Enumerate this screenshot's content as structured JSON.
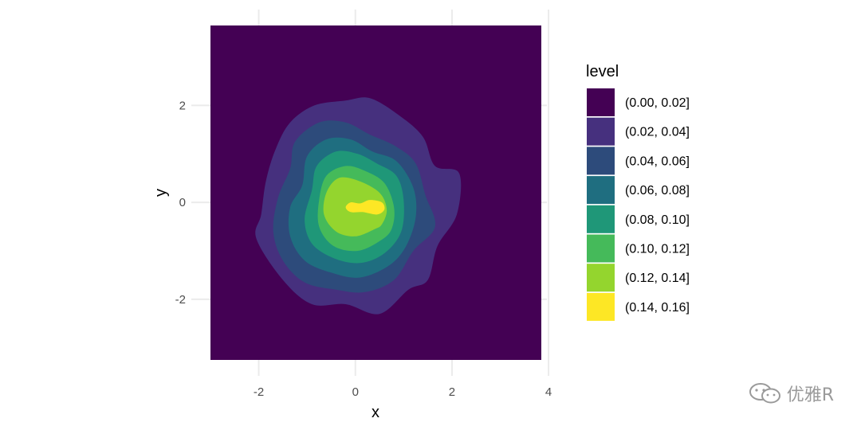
{
  "chart_data": {
    "type": "heatmap",
    "subtype": "filled-density-contour",
    "title": "",
    "xlabel": "x",
    "ylabel": "y",
    "xlim": [
      -3,
      3.85
    ],
    "ylim": [
      -3.25,
      3.65
    ],
    "x_ticks": [
      -2,
      0,
      2,
      4
    ],
    "y_ticks": [
      -2,
      0,
      2
    ],
    "x_tick_labels": [
      "-2",
      "0",
      "2",
      "4"
    ],
    "y_tick_labels": [
      "-2",
      "0",
      "2"
    ],
    "grid": true,
    "legend_position": "right",
    "legend_title": "level",
    "levels": [
      {
        "label": "(0.00, 0.02]",
        "color": "#440154"
      },
      {
        "label": "(0.02, 0.04]",
        "color": "#46307E"
      },
      {
        "label": "(0.04, 0.06]",
        "color": "#2D4B7B"
      },
      {
        "label": "(0.06, 0.08]",
        "color": "#1F6E80"
      },
      {
        "label": "(0.08, 0.10]",
        "color": "#1F9778"
      },
      {
        "label": "(0.10, 0.12]",
        "color": "#45BA5A"
      },
      {
        "label": "(0.12, 0.14]",
        "color": "#94D52E"
      },
      {
        "label": "(0.14, 0.16]",
        "color": "#FDE725"
      }
    ],
    "contours": [
      {
        "level": 1,
        "points": [
          [
            1.1,
            -1.8
          ],
          [
            0.5,
            -2.3
          ],
          [
            -0.2,
            -2.1
          ],
          [
            -0.9,
            -2.1
          ],
          [
            -1.5,
            -1.6
          ],
          [
            -2.05,
            -0.75
          ],
          [
            -1.95,
            -0.25
          ],
          [
            -1.85,
            0.45
          ],
          [
            -1.65,
            1.1
          ],
          [
            -1.35,
            1.65
          ],
          [
            -0.85,
            2.0
          ],
          [
            -0.2,
            2.1
          ],
          [
            0.3,
            2.15
          ],
          [
            0.9,
            1.8
          ],
          [
            1.4,
            1.35
          ],
          [
            1.65,
            0.75
          ],
          [
            2.15,
            0.6
          ],
          [
            2.1,
            -0.25
          ],
          [
            1.7,
            -0.9
          ],
          [
            1.5,
            -1.6
          ]
        ]
      },
      {
        "level": 2,
        "points": [
          [
            0.8,
            -1.6
          ],
          [
            0.2,
            -1.85
          ],
          [
            -0.4,
            -1.8
          ],
          [
            -1.05,
            -1.65
          ],
          [
            -1.5,
            -1.2
          ],
          [
            -1.7,
            -0.6
          ],
          [
            -1.6,
            0.1
          ],
          [
            -1.35,
            0.7
          ],
          [
            -1.25,
            1.25
          ],
          [
            -0.75,
            1.65
          ],
          [
            -0.2,
            1.65
          ],
          [
            0.3,
            1.4
          ],
          [
            0.85,
            1.15
          ],
          [
            1.25,
            0.8
          ],
          [
            1.45,
            0.15
          ],
          [
            1.65,
            -0.5
          ],
          [
            1.2,
            -1.0
          ]
        ]
      },
      {
        "level": 3,
        "points": [
          [
            0.7,
            -1.3
          ],
          [
            0.1,
            -1.55
          ],
          [
            -0.5,
            -1.45
          ],
          [
            -1.05,
            -1.2
          ],
          [
            -1.35,
            -0.7
          ],
          [
            -1.35,
            -0.1
          ],
          [
            -1.1,
            0.35
          ],
          [
            -1.0,
            0.95
          ],
          [
            -0.6,
            1.3
          ],
          [
            -0.1,
            1.3
          ],
          [
            0.35,
            1.05
          ],
          [
            0.85,
            0.85
          ],
          [
            1.2,
            0.3
          ],
          [
            1.25,
            -0.3
          ],
          [
            1.05,
            -0.9
          ]
        ]
      },
      {
        "level": 4,
        "points": [
          [
            0.6,
            -1.05
          ],
          [
            0.1,
            -1.25
          ],
          [
            -0.45,
            -1.15
          ],
          [
            -0.9,
            -0.85
          ],
          [
            -1.05,
            -0.35
          ],
          [
            -0.9,
            0.25
          ],
          [
            -0.8,
            0.75
          ],
          [
            -0.4,
            1.05
          ],
          [
            0.05,
            1.0
          ],
          [
            0.45,
            0.8
          ],
          [
            0.85,
            0.55
          ],
          [
            1.0,
            0.05
          ],
          [
            0.95,
            -0.6
          ]
        ]
      },
      {
        "level": 5,
        "points": [
          [
            0.5,
            -0.8
          ],
          [
            0.05,
            -1.0
          ],
          [
            -0.45,
            -0.9
          ],
          [
            -0.75,
            -0.5
          ],
          [
            -0.75,
            0.05
          ],
          [
            -0.6,
            0.55
          ],
          [
            -0.2,
            0.75
          ],
          [
            0.2,
            0.65
          ],
          [
            0.6,
            0.4
          ],
          [
            0.8,
            -0.1
          ],
          [
            0.75,
            -0.55
          ]
        ]
      },
      {
        "level": 6,
        "points": [
          [
            0.4,
            -0.55
          ],
          [
            0.0,
            -0.7
          ],
          [
            -0.4,
            -0.6
          ],
          [
            -0.65,
            -0.25
          ],
          [
            -0.6,
            0.2
          ],
          [
            -0.35,
            0.5
          ],
          [
            0.05,
            0.45
          ],
          [
            0.5,
            0.2
          ],
          [
            0.65,
            -0.15
          ],
          [
            0.55,
            -0.45
          ]
        ]
      },
      {
        "level": 7,
        "points": [
          [
            0.45,
            -0.25
          ],
          [
            0.15,
            -0.2
          ],
          [
            -0.1,
            -0.2
          ],
          [
            -0.2,
            -0.1
          ],
          [
            -0.1,
            0.0
          ],
          [
            0.1,
            -0.02
          ],
          [
            0.3,
            0.05
          ],
          [
            0.55,
            0.0
          ],
          [
            0.6,
            -0.15
          ]
        ]
      }
    ]
  },
  "watermark": {
    "text": "优雅R",
    "icon": "wechat-icon"
  }
}
